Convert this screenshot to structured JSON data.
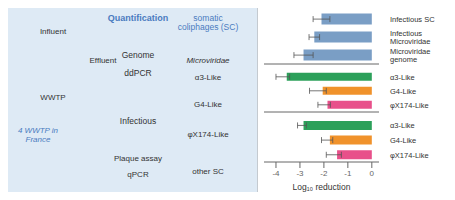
{
  "chart_data": [
    {
      "type": "bar",
      "orientation": "horizontal",
      "categories": [
        "Infectious SC",
        "Infectious\nMicroviridae",
        "Microviridae\ngenome"
      ],
      "values": [
        -2.1,
        -2.4,
        -2.85
      ],
      "errors": [
        0.35,
        0.22,
        0.4
      ],
      "color": "#7a9ec5",
      "xlim": [
        -4.5,
        0.3
      ],
      "xticks": [
        -4,
        -3,
        -2,
        -1,
        0
      ],
      "tick_labels": "y",
      "annotations": [
        "Influent",
        "Effluent",
        "WWTP",
        "4 WWTP in\nFrance",
        "Quantification",
        "Genome",
        "ddPCR",
        "Infectious",
        "Plaque assay",
        "qPCR",
        "somatic\ncoliphages (SC)",
        "Microviridae",
        "α3-Like",
        "G4-Like",
        "φX174-Like",
        "other SC"
      ]
    },
    {
      "type": "bar",
      "orientation": "horizontal",
      "categories": [
        "α3-Like",
        "G4-Like",
        "φX174-Like"
      ],
      "values": [
        -3.55,
        -2.05,
        -1.85
      ],
      "errors_low": [
        0.45,
        0.55,
        0.4
      ],
      "errors_high": [
        0.12,
        0.15,
        0.12
      ],
      "colors": [
        "#2ca05a",
        "#f0922b",
        "#e8508a"
      ],
      "xlim": [
        -4.5,
        0.3
      ],
      "xticks": [
        -4,
        -3,
        -2,
        -1,
        0
      ],
      "tick_labels": "y"
    },
    {
      "type": "bar",
      "orientation": "horizontal",
      "categories": [
        "α3-Like",
        "G4-Like",
        "φX174-Like"
      ],
      "values": [
        -2.85,
        -1.75,
        -1.45
      ],
      "errors_low": [
        0.25,
        0.35,
        0.45
      ],
      "errors_high": [
        0.12,
        0.12,
        0.18
      ],
      "colors": [
        "#2ca05a",
        "#f0922b",
        "#e8508a"
      ],
      "xlim": [
        -4.5,
        0.3
      ],
      "xticks": [
        -4,
        -3,
        -2,
        -1,
        0
      ],
      "xlabel": "Log₁₀ reduction"
    }
  ]
}
